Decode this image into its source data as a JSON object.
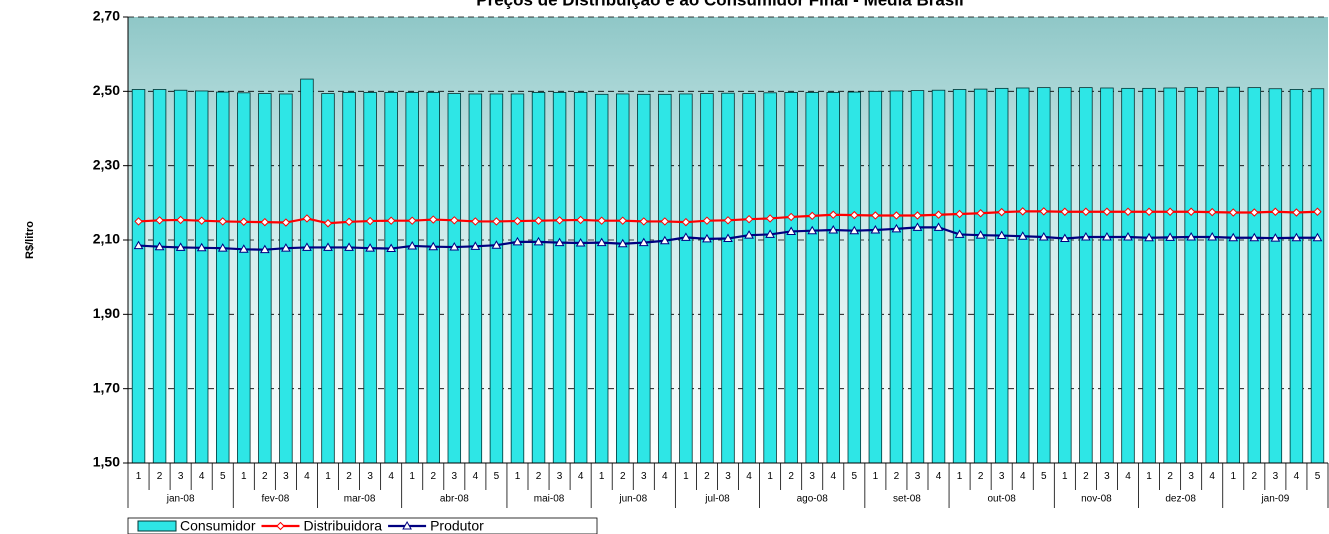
{
  "chart_data": {
    "type": "bar-line",
    "title": "Preços de Distribuição e ao Consumidor Final - Média Brasil",
    "y_label": "R$/litro",
    "groups": [
      {
        "label": "jan-08",
        "weeks": [
          "1",
          "2",
          "3",
          "4",
          "5"
        ]
      },
      {
        "label": "fev-08",
        "weeks": [
          "1",
          "2",
          "3",
          "4"
        ]
      },
      {
        "label": "mar-08",
        "weeks": [
          "1",
          "2",
          "3",
          "4"
        ]
      },
      {
        "label": "abr-08",
        "weeks": [
          "1",
          "2",
          "3",
          "4",
          "5"
        ]
      },
      {
        "label": "mai-08",
        "weeks": [
          "1",
          "2",
          "3",
          "4"
        ]
      },
      {
        "label": "jun-08",
        "weeks": [
          "1",
          "2",
          "3",
          "4"
        ]
      },
      {
        "label": "jul-08",
        "weeks": [
          "1",
          "2",
          "3",
          "4"
        ]
      },
      {
        "label": "ago-08",
        "weeks": [
          "1",
          "2",
          "3",
          "4",
          "5"
        ]
      },
      {
        "label": "set-08",
        "weeks": [
          "1",
          "2",
          "3",
          "4"
        ]
      },
      {
        "label": "out-08",
        "weeks": [
          "1",
          "2",
          "3",
          "4",
          "5"
        ]
      },
      {
        "label": "nov-08",
        "weeks": [
          "1",
          "2",
          "3",
          "4"
        ]
      },
      {
        "label": "dez-08",
        "weeks": [
          "1",
          "2",
          "3",
          "4"
        ]
      },
      {
        "label": "jan-09",
        "weeks": [
          "1",
          "2",
          "3",
          "4",
          "5"
        ]
      }
    ],
    "series": [
      {
        "name": "Consumidor",
        "kind": "bar",
        "color": "#2ee6e6",
        "values": [
          2.505,
          2.505,
          2.503,
          2.501,
          2.498,
          2.496,
          2.494,
          2.493,
          2.533,
          2.494,
          2.497,
          2.497,
          2.497,
          2.497,
          2.497,
          2.494,
          2.493,
          2.493,
          2.493,
          2.497,
          2.497,
          2.497,
          2.492,
          2.493,
          2.492,
          2.492,
          2.493,
          2.494,
          2.495,
          2.494,
          2.496,
          2.497,
          2.497,
          2.497,
          2.498,
          2.5,
          2.501,
          2.502,
          2.503,
          2.505,
          2.506,
          2.508,
          2.509,
          2.51,
          2.51,
          2.51,
          2.509,
          2.508,
          2.508,
          2.509,
          2.51,
          2.51,
          2.511,
          2.51,
          2.507,
          2.505,
          2.507
        ]
      },
      {
        "name": "Distribuidora",
        "kind": "line",
        "marker": "diamond",
        "color": "#ff0000",
        "values": [
          2.15,
          2.153,
          2.154,
          2.152,
          2.15,
          2.149,
          2.148,
          2.147,
          2.158,
          2.145,
          2.149,
          2.151,
          2.152,
          2.152,
          2.155,
          2.153,
          2.15,
          2.15,
          2.151,
          2.152,
          2.153,
          2.154,
          2.152,
          2.152,
          2.15,
          2.15,
          2.148,
          2.152,
          2.153,
          2.156,
          2.158,
          2.162,
          2.165,
          2.168,
          2.167,
          2.166,
          2.166,
          2.166,
          2.168,
          2.17,
          2.172,
          2.175,
          2.177,
          2.177,
          2.176,
          2.176,
          2.176,
          2.176,
          2.176,
          2.176,
          2.176,
          2.175,
          2.174,
          2.174,
          2.176,
          2.174,
          2.176
        ]
      },
      {
        "name": "Produtor",
        "kind": "line",
        "marker": "triangle",
        "color": "#000080",
        "values": [
          2.085,
          2.082,
          2.08,
          2.079,
          2.078,
          2.075,
          2.074,
          2.078,
          2.08,
          2.08,
          2.08,
          2.078,
          2.077,
          2.084,
          2.082,
          2.081,
          2.083,
          2.086,
          2.095,
          2.095,
          2.093,
          2.092,
          2.093,
          2.09,
          2.093,
          2.098,
          2.107,
          2.103,
          2.104,
          2.113,
          2.115,
          2.123,
          2.125,
          2.127,
          2.125,
          2.127,
          2.13,
          2.134,
          2.134,
          2.115,
          2.113,
          2.112,
          2.11,
          2.108,
          2.104,
          2.108,
          2.108,
          2.108,
          2.106,
          2.107,
          2.108,
          2.108,
          2.106,
          2.106,
          2.105,
          2.106,
          2.106
        ]
      }
    ],
    "ylim": [
      1.5,
      2.7
    ],
    "yticks": [
      {
        "value": 1.5,
        "label": "1,50"
      },
      {
        "value": 1.7,
        "label": "1,70"
      },
      {
        "value": 1.9,
        "label": "1,90"
      },
      {
        "value": 2.1,
        "label": "2,10"
      },
      {
        "value": 2.3,
        "label": "2,30"
      },
      {
        "value": 2.5,
        "label": "2,50"
      },
      {
        "value": 2.7,
        "label": "2,70"
      }
    ],
    "grid": true
  }
}
